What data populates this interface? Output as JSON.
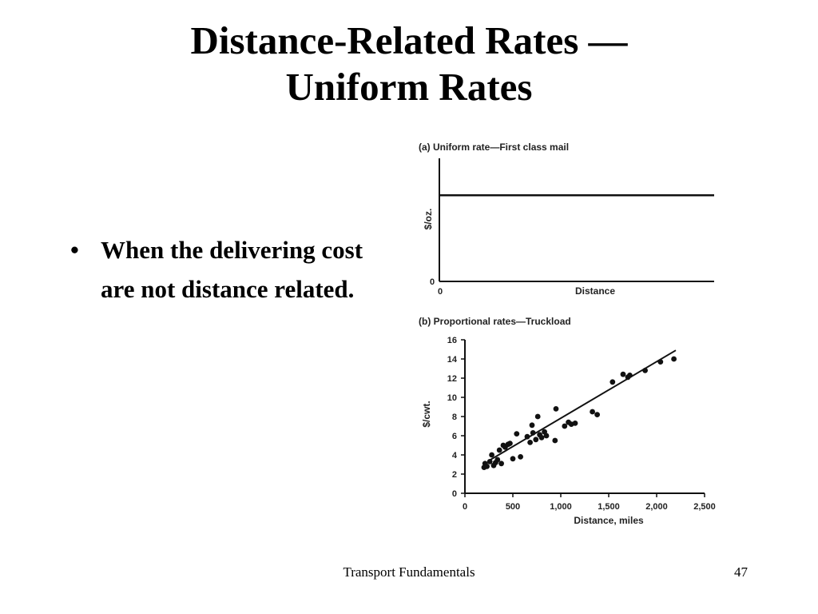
{
  "slide": {
    "title_line1": "Distance-Related Rates —",
    "title_line2": "Uniform Rates",
    "bullets": [
      "When the delivering cost are not distance related."
    ],
    "bullet_symbol": "•"
  },
  "footer": {
    "title": "Transport Fundamentals",
    "page_number": "47"
  },
  "chart_data": [
    {
      "type": "line",
      "title": "(a) Uniform rate—First class mail",
      "xlabel": "Distance",
      "ylabel": "$/oz.",
      "x_origin_label": "0",
      "y_origin_label": "0",
      "x": [
        0,
        1
      ],
      "values": [
        0.7,
        0.7
      ],
      "ylim": [
        0,
        1
      ],
      "xlim": [
        0,
        1
      ]
    },
    {
      "type": "scatter",
      "title": "(b) Proportional rates—Truckload",
      "xlabel": "Distance, miles",
      "ylabel": "$/cwt.",
      "xlim": [
        0,
        2500
      ],
      "ylim": [
        0,
        16
      ],
      "xticks": [
        0,
        500,
        1000,
        1500,
        2000,
        2500
      ],
      "xtick_labels": [
        "0",
        "500",
        "1,000",
        "1,500",
        "2,000",
        "2,500"
      ],
      "yticks": [
        0,
        2,
        4,
        6,
        8,
        10,
        12,
        14,
        16
      ],
      "ytick_labels": [
        "0",
        "2",
        "4",
        "6",
        "8",
        "10",
        "12",
        "14",
        "16"
      ],
      "trend_line": {
        "x": [
          250,
          2200
        ],
        "y": [
          3.4,
          14.9
        ]
      },
      "points": [
        [
          200,
          2.7
        ],
        [
          210,
          3.1
        ],
        [
          230,
          2.8
        ],
        [
          260,
          3.3
        ],
        [
          280,
          4.0
        ],
        [
          300,
          2.9
        ],
        [
          320,
          3.2
        ],
        [
          340,
          3.5
        ],
        [
          360,
          4.5
        ],
        [
          380,
          3.1
        ],
        [
          400,
          5.0
        ],
        [
          420,
          4.8
        ],
        [
          450,
          5.1
        ],
        [
          470,
          5.2
        ],
        [
          500,
          3.6
        ],
        [
          540,
          6.2
        ],
        [
          580,
          3.8
        ],
        [
          650,
          5.9
        ],
        [
          680,
          5.3
        ],
        [
          700,
          7.1
        ],
        [
          710,
          6.3
        ],
        [
          740,
          5.6
        ],
        [
          760,
          8.0
        ],
        [
          780,
          6.1
        ],
        [
          800,
          5.8
        ],
        [
          830,
          6.4
        ],
        [
          850,
          6.0
        ],
        [
          940,
          5.5
        ],
        [
          950,
          8.8
        ],
        [
          1040,
          7.0
        ],
        [
          1080,
          7.4
        ],
        [
          1110,
          7.2
        ],
        [
          1150,
          7.3
        ],
        [
          1330,
          8.5
        ],
        [
          1380,
          8.2
        ],
        [
          1540,
          11.6
        ],
        [
          1650,
          12.4
        ],
        [
          1700,
          12.1
        ],
        [
          1720,
          12.3
        ],
        [
          1880,
          12.8
        ],
        [
          2040,
          13.7
        ],
        [
          2180,
          14.0
        ]
      ]
    }
  ]
}
